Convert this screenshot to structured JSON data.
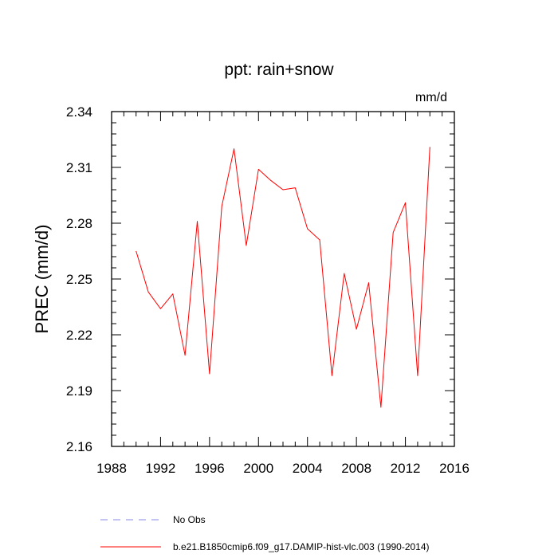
{
  "chart_data": {
    "type": "line",
    "title": "ppt: rain+snow",
    "units": "mm/d",
    "xlabel": "",
    "ylabel": "PREC  (mm/d)",
    "xlim": [
      1988,
      2016
    ],
    "ylim": [
      2.16,
      2.34
    ],
    "xticks": [
      1988,
      1992,
      1996,
      2000,
      2004,
      2008,
      2012,
      2016
    ],
    "yticks": [
      2.16,
      2.19,
      2.22,
      2.25,
      2.28,
      2.31,
      2.34
    ],
    "ytick_labels": [
      "2.16",
      "2.19",
      "2.22",
      "2.25",
      "2.28",
      "2.31",
      "2.34"
    ],
    "x_minor_step": 1,
    "y_minor_step": 0.006,
    "grid": false,
    "series": [
      {
        "name": "b.e21.B1850cmip6.f09_g17.DAMIP-hist-vlc.003 (1990-2014)",
        "color": "#ff0000",
        "x": [
          1990,
          1991,
          1992,
          1993,
          1994,
          1995,
          1996,
          1997,
          1998,
          1999,
          2000,
          2001,
          2002,
          2003,
          2004,
          2005,
          2006,
          2007,
          2008,
          2009,
          2010,
          2011,
          2012,
          2013,
          2014
        ],
        "values": [
          2.265,
          2.243,
          2.234,
          2.242,
          2.209,
          2.281,
          2.199,
          2.289,
          2.32,
          2.268,
          2.309,
          2.303,
          2.298,
          2.299,
          2.277,
          2.271,
          2.198,
          2.253,
          2.223,
          2.248,
          2.181,
          2.275,
          2.291,
          2.198,
          2.321
        ]
      }
    ],
    "legend": [
      {
        "label": "No Obs",
        "style": "dashed",
        "color": "#8a8ae6"
      },
      {
        "label": "b.e21.B1850cmip6.f09_g17.DAMIP-hist-vlc.003 (1990-2014)",
        "style": "solid",
        "color": "#ff0000"
      }
    ],
    "legend_position": "bottom"
  }
}
